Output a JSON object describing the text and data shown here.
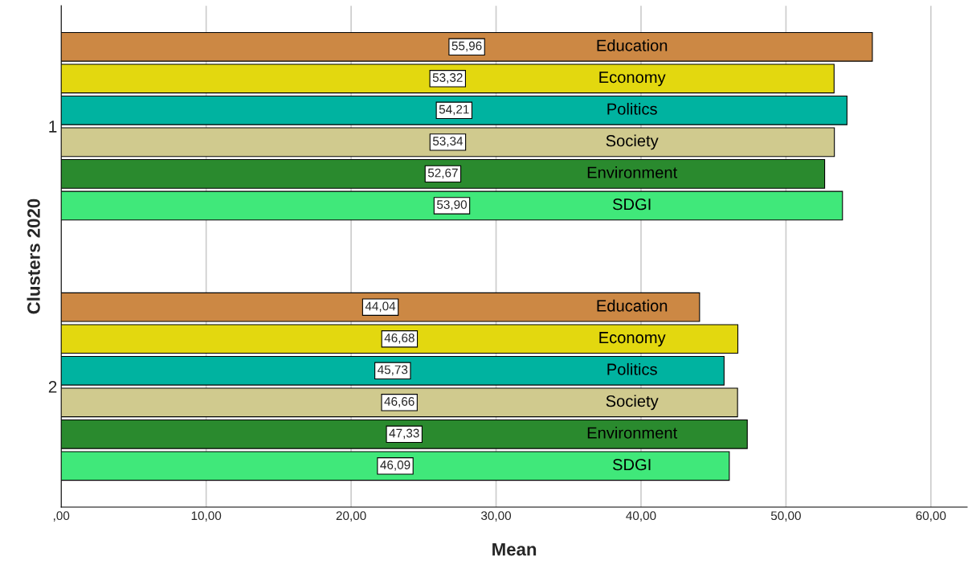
{
  "chart_data": {
    "type": "bar",
    "orientation": "horizontal",
    "xlabel": "Mean",
    "ylabel": "Clusters 2020",
    "categories": [
      "1",
      "2"
    ],
    "series": [
      {
        "name": "Education",
        "color": "#cc8844",
        "values": [
          55.96,
          44.04
        ],
        "value_labels": [
          "55,96",
          "44,04"
        ]
      },
      {
        "name": "Economy",
        "color": "#e3d80f",
        "values": [
          53.32,
          46.68
        ],
        "value_labels": [
          "53,32",
          "46,68"
        ]
      },
      {
        "name": "Politics",
        "color": "#00b3a0",
        "values": [
          54.21,
          45.73
        ],
        "value_labels": [
          "54,21",
          "45,73"
        ]
      },
      {
        "name": "Society",
        "color": "#d0ca8e",
        "values": [
          53.34,
          46.66
        ],
        "value_labels": [
          "53,34",
          "46,66"
        ]
      },
      {
        "name": "Environment",
        "color": "#2a8a2e",
        "values": [
          52.67,
          47.33
        ],
        "value_labels": [
          "52,67",
          "47,33"
        ]
      },
      {
        "name": "SDGI",
        "color": "#40e87a",
        "values": [
          53.9,
          46.09
        ],
        "value_labels": [
          "53,90",
          "46,09"
        ]
      }
    ],
    "xlim": [
      0,
      62.5
    ],
    "xticks": [
      {
        "value": 0,
        "label": ",00"
      },
      {
        "value": 10,
        "label": "10,00"
      },
      {
        "value": 20,
        "label": "20,00"
      },
      {
        "value": 30,
        "label": "30,00"
      },
      {
        "value": 40,
        "label": "40,00"
      },
      {
        "value": 50,
        "label": "50,00"
      },
      {
        "value": 60,
        "label": "60,00"
      }
    ],
    "grid": "x",
    "legend": false
  }
}
